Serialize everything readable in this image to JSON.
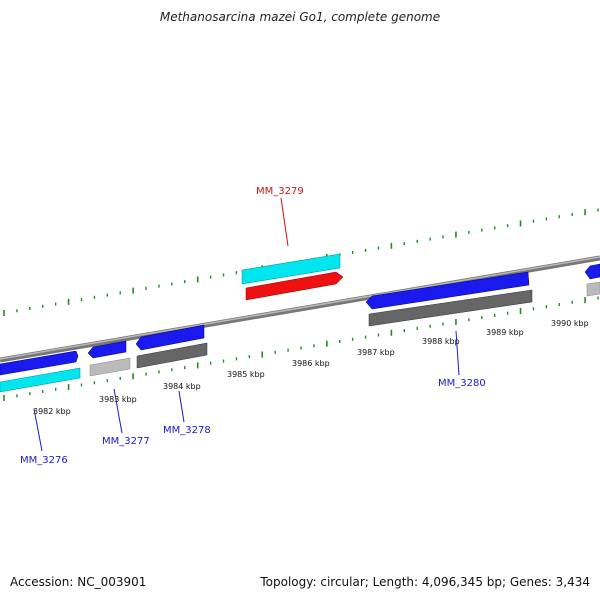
{
  "title": "Methanosarcina mazei Go1, complete genome",
  "footer": {
    "accession": "Accession: NC_003901",
    "stats": "Topology: circular; Length: 4,096,345 bp; Genes: 3,434"
  },
  "colors": {
    "backbone": "#8a8a8a",
    "forward_gene": "#1a1aee",
    "reverse_gene": "#00e5ee",
    "highlight_gene": "#ee1111",
    "gray_cds": "#666666",
    "light_cds": "#bbbbbb",
    "tick": "#228b22",
    "label_blue": "#1a1acc",
    "label_red": "#cc1111"
  },
  "scale": {
    "tick_labels": [
      "3982 kbp",
      "3983 kbp",
      "3984 kbp",
      "3985 kbp",
      "3986 kbp",
      "3987 kbp",
      "3988 kbp",
      "3989 kbp",
      "3990 kbp"
    ]
  },
  "genes": [
    {
      "label": "MM_3276",
      "color_key": "label_blue"
    },
    {
      "label": "MM_3277",
      "color_key": "label_blue"
    },
    {
      "label": "MM_3278",
      "color_key": "label_blue"
    },
    {
      "label": "MM_3279",
      "color_key": "label_red"
    },
    {
      "label": "MM_3280",
      "color_key": "label_blue"
    }
  ]
}
